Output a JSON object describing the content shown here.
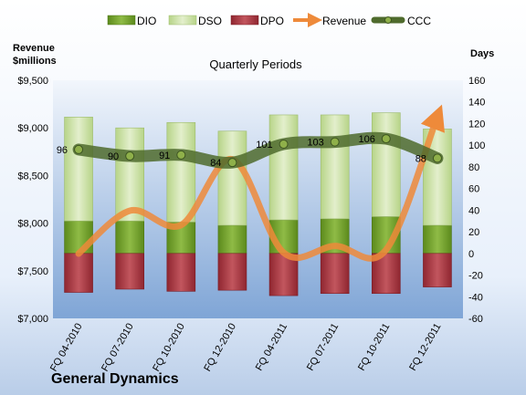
{
  "chart_data": {
    "type": "bar",
    "title": "Quarterly Periods",
    "company": "General Dynamics",
    "left_axis_label": "Revenue\n$millions",
    "right_axis_label": "Days",
    "categories": [
      "FQ 04-2010",
      "FQ 07-2010",
      "FQ 10-2010",
      "FQ 12-2010",
      "FQ 04-2011",
      "FQ 07-2011",
      "FQ 10-2011",
      "FQ 12-2011"
    ],
    "left_axis": {
      "ylim": [
        7000,
        9500
      ],
      "ticks": [
        7000,
        7500,
        8000,
        8500,
        9000,
        9500
      ],
      "tick_labels": [
        "$7,000",
        "$7,500",
        "$8,000",
        "$8,500",
        "$9,000",
        "$9,500"
      ]
    },
    "right_axis": {
      "ylim": [
        -60,
        160
      ],
      "ticks": [
        -60,
        -40,
        -20,
        0,
        20,
        40,
        60,
        80,
        100,
        120,
        140,
        160
      ],
      "tick_labels": [
        "-60",
        "-40",
        "-20",
        "0",
        "20",
        "40",
        "60",
        "80",
        "100",
        "120",
        "140",
        "160"
      ]
    },
    "grid": false,
    "legend_position": "top",
    "series": [
      {
        "name": "DIO",
        "axis": "right",
        "kind": "stacked-bar",
        "values": [
          30,
          30,
          29,
          26,
          31,
          32,
          34,
          26
        ],
        "color": "#6f9a2a"
      },
      {
        "name": "DSO",
        "axis": "right",
        "kind": "stacked-bar",
        "values": [
          96,
          86,
          92,
          87,
          97,
          96,
          96,
          89
        ],
        "color": "#c9df9a"
      },
      {
        "name": "DPO",
        "axis": "right",
        "kind": "negative-bar",
        "values": [
          -36,
          -33,
          -35,
          -34,
          -39,
          -37,
          -37,
          -31
        ],
        "color": "#a8323a"
      },
      {
        "name": "Revenue",
        "axis": "left",
        "kind": "line",
        "values": [
          7680,
          8130,
          7980,
          8670,
          7690,
          7760,
          7720,
          9120
        ],
        "color": "#ee8a3a"
      },
      {
        "name": "CCC",
        "axis": "right",
        "kind": "line",
        "values": [
          96,
          90,
          91,
          84,
          101,
          103,
          106,
          88
        ],
        "labels": [
          "96",
          "90",
          "91",
          "84",
          "101",
          "103",
          "106",
          "88"
        ],
        "color": "#4f6b2d"
      }
    ]
  }
}
